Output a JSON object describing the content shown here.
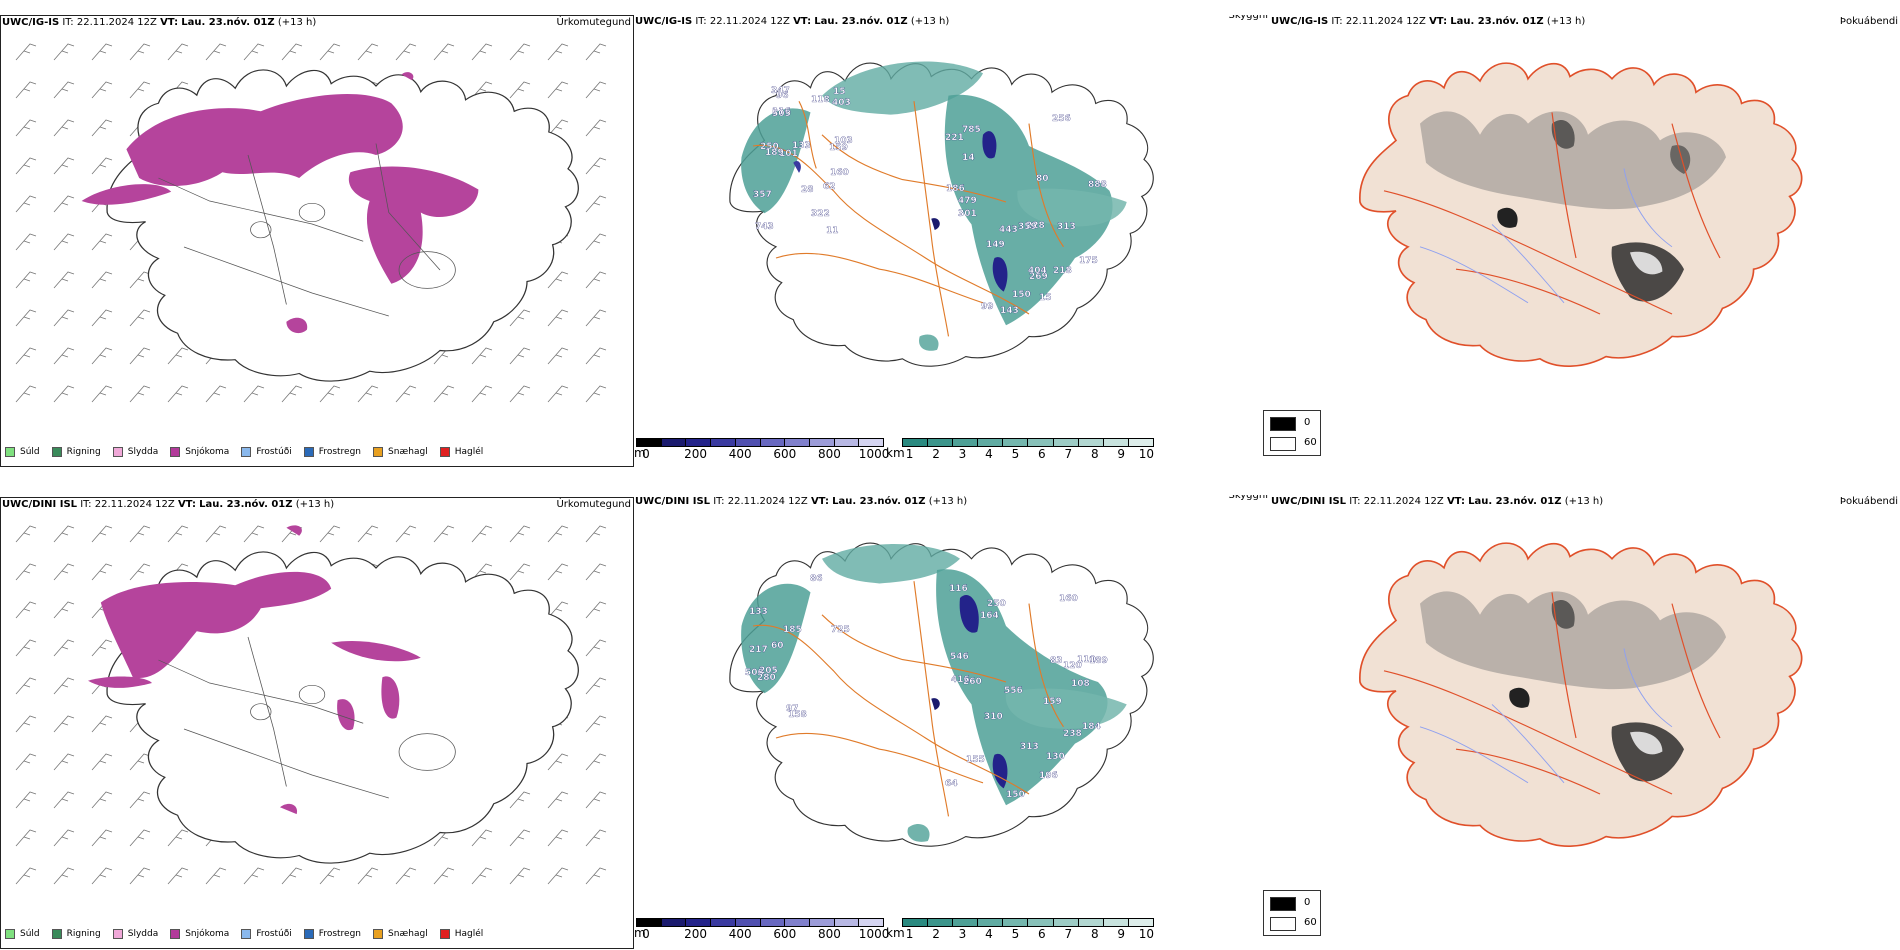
{
  "rows": [
    {
      "model": "UWC/IG-IS",
      "it_label": "IT:",
      "it_value": "22.11.2024 12Z",
      "vt_label": "VT:",
      "vt_value": "Lau. 23.nóv. 01Z",
      "lead": "(+13 h)",
      "cloud_labels": [
        "888",
        "256",
        "443",
        "743",
        "479",
        "357",
        "347",
        "269",
        "301",
        "228",
        "250",
        "103",
        "150",
        "101",
        "80",
        "785",
        "221",
        "15",
        "175",
        "143",
        "116",
        "28",
        "11",
        "133",
        "159",
        "313",
        "322",
        "403",
        "359",
        "404",
        "15",
        "218",
        "186",
        "189",
        "505",
        "118",
        "160",
        "96",
        "99",
        "149",
        "62",
        "14"
      ]
    },
    {
      "model": "UWC/DINI ISL",
      "it_label": "IT:",
      "it_value": "22.11.2024 12Z",
      "vt_label": "VT:",
      "vt_value": "Lau. 23.nóv. 01Z",
      "lead": "(+13 h)",
      "cloud_labels": [
        "506",
        "725",
        "556",
        "416",
        "205",
        "217",
        "260",
        "64",
        "133",
        "150",
        "120",
        "110",
        "164",
        "546",
        "158",
        "83",
        "86",
        "185",
        "130",
        "313",
        "184",
        "280",
        "310",
        "238",
        "159",
        "189",
        "116",
        "196",
        "160",
        "97",
        "155",
        "108",
        "60",
        "250"
      ]
    }
  ],
  "titles": {
    "precip_type": "Úrkomutegund",
    "visibility": "Skyggni",
    "fog": "Þokuábendi"
  },
  "precip_legend": [
    {
      "label": "Súld",
      "color": "#7fe07f"
    },
    {
      "label": "Rigning",
      "color": "#3a8a5a"
    },
    {
      "label": "Slydda",
      "color": "#f0a8d8"
    },
    {
      "label": "Snjókoma",
      "color": "#b23a9a"
    },
    {
      "label": "Frostúði",
      "color": "#8ab8ec"
    },
    {
      "label": "Frostregn",
      "color": "#2a6ab8"
    },
    {
      "label": "Snæhagl",
      "color": "#e8a020"
    },
    {
      "label": "Haglél",
      "color": "#e02020"
    }
  ],
  "cloud_base_bar": {
    "unit": "m",
    "ticks": [
      "0",
      "200",
      "400",
      "600",
      "800",
      "1000"
    ],
    "colors": [
      "#000000",
      "#1a1a6e",
      "#23238a",
      "#3a3aa0",
      "#5050b0",
      "#6868c0",
      "#8080cc",
      "#9c9cd8",
      "#b8b8e4",
      "#d4d4f0"
    ]
  },
  "visibility_bar": {
    "unit": "km",
    "ticks": [
      "1",
      "2",
      "3",
      "4",
      "5",
      "6",
      "7",
      "8",
      "9",
      "10"
    ],
    "colors": [
      "#2a8a80",
      "#3c958b",
      "#4ea096",
      "#60aba2",
      "#74b6ad",
      "#88c1b9",
      "#9dccc5",
      "#b2d7d1",
      "#c8e3de",
      "#deeeeb"
    ]
  },
  "fog_legend": [
    {
      "label": "0",
      "color": "#000000"
    },
    {
      "label": "60",
      "color": "#ffffff"
    }
  ]
}
